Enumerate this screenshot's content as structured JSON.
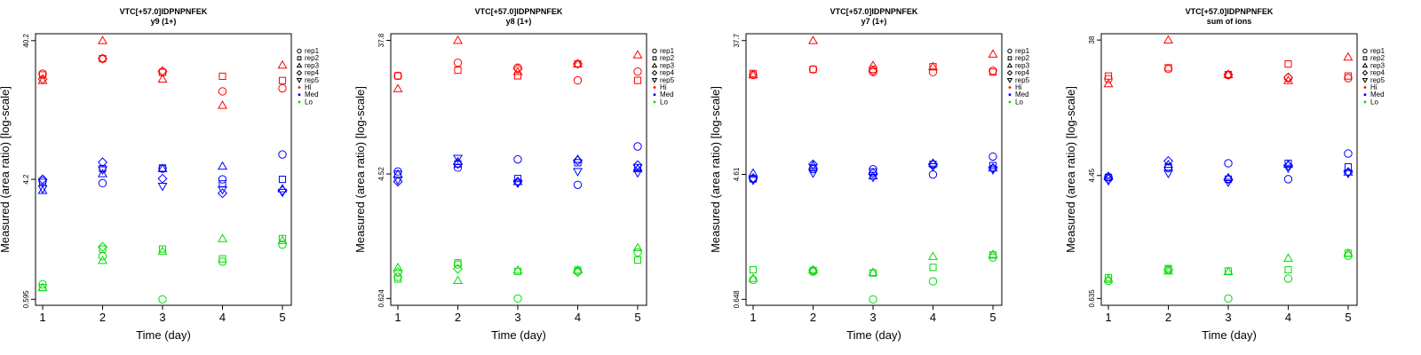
{
  "chart_data": [
    {
      "type": "scatter",
      "title": "VTC[+57.0]IDPNPNFEK",
      "subtitle": "y9 (1+)",
      "xlabel": "Time (day)",
      "ylabel": "Measured (area ratio) [log-scale]",
      "log_y": true,
      "x_ticks": [
        "1",
        "2",
        "3",
        "4",
        "5"
      ],
      "y_ticks": [
        {
          "label": "0.595",
          "value": 0.595
        },
        {
          "label": "4.2",
          "value": 4.2
        },
        {
          "label": "40.2",
          "value": 40.2
        }
      ],
      "ylim": [
        0.54,
        45.0
      ],
      "legend": [
        {
          "label": "rep1",
          "symbol": "circle"
        },
        {
          "label": "rep2",
          "symbol": "square"
        },
        {
          "label": "rep3",
          "symbol": "triangle-up"
        },
        {
          "label": "rep4",
          "symbol": "diamond"
        },
        {
          "label": "rep5",
          "symbol": "triangle-down"
        },
        {
          "label": "Hi",
          "color": "#ff0000"
        },
        {
          "label": "Med",
          "color": "#0000ff"
        },
        {
          "label": "Lo",
          "color": "#00dd00"
        }
      ],
      "legend_position": "top-right",
      "series": [
        {
          "level": "Hi",
          "color": "#ff0000",
          "points": {
            "rep1": [
              23.5,
              30.0,
              24.0,
              17.6,
              18.5
            ],
            "rep2": [
              23.0,
              30.0,
              24.0,
              22.5,
              21.0
            ],
            "rep3": [
              21.0,
              40.2,
              21.5,
              14.0,
              27.0
            ],
            "rep4": [
              21.5,
              30.0,
              24.5,
              null,
              null
            ],
            "rep5": [
              null,
              null,
              null,
              null,
              null
            ]
          }
        },
        {
          "level": "Med",
          "color": "#0000ff",
          "points": {
            "rep1": [
              4.1,
              3.95,
              5.0,
              4.2,
              6.3
            ],
            "rep2": [
              4.0,
              5.0,
              5.05,
              3.9,
              4.2
            ],
            "rep3": [
              3.5,
              4.6,
              5.0,
              5.2,
              3.6
            ],
            "rep4": [
              4.2,
              5.55,
              4.25,
              3.35,
              3.5
            ],
            "rep5": [
              3.6,
              4.9,
              3.75,
              3.55,
              3.4
            ]
          }
        },
        {
          "level": "Lo",
          "color": "#00dd00",
          "points": {
            "rep1": [
              0.76,
              1.2,
              0.595,
              1.1,
              1.45
            ],
            "rep2": [
              0.72,
              1.35,
              1.35,
              1.15,
              1.6
            ],
            "rep3": [
              0.72,
              1.12,
              1.3,
              1.6,
              1.55
            ],
            "rep4": [
              null,
              1.4,
              null,
              null,
              null
            ],
            "rep5": [
              null,
              null,
              null,
              null,
              null
            ]
          }
        }
      ]
    },
    {
      "type": "scatter",
      "title": "VTC[+57.0]IDPNPNFEK",
      "subtitle": "y8 (1+)",
      "xlabel": "Time (day)",
      "ylabel": "Measured (area ratio) [log-scale]",
      "log_y": true,
      "x_ticks": [
        "1",
        "2",
        "3",
        "4",
        "5"
      ],
      "y_ticks": [
        {
          "label": "0.624",
          "value": 0.624
        },
        {
          "label": "4.52",
          "value": 4.52
        },
        {
          "label": "37.8",
          "value": 37.8
        }
      ],
      "ylim": [
        0.56,
        42.0
      ],
      "legend": [
        {
          "label": "rep1",
          "symbol": "circle"
        },
        {
          "label": "rep2",
          "symbol": "square"
        },
        {
          "label": "rep3",
          "symbol": "triangle-up"
        },
        {
          "label": "rep4",
          "symbol": "diamond"
        },
        {
          "label": "rep5",
          "symbol": "triangle-down"
        },
        {
          "label": "Hi",
          "color": "#ff0000"
        },
        {
          "label": "Med",
          "color": "#0000ff"
        },
        {
          "label": "Lo",
          "color": "#00dd00"
        }
      ],
      "legend_position": "top-right",
      "series": [
        {
          "level": "Hi",
          "color": "#ff0000",
          "points": {
            "rep1": [
              21.5,
              26.5,
              24.5,
              20.0,
              23.0
            ],
            "rep2": [
              21.5,
              23.5,
              21.5,
              26.0,
              20.0
            ],
            "rep3": [
              17.5,
              37.8,
              23.0,
              26.0,
              30.0
            ],
            "rep4": [
              null,
              null,
              24.0,
              26.0,
              null
            ],
            "rep5": [
              null,
              null,
              null,
              null,
              null
            ]
          }
        },
        {
          "level": "Med",
          "color": "#0000ff",
          "points": {
            "rep1": [
              4.7,
              5.0,
              5.7,
              3.8,
              7.0
            ],
            "rep2": [
              4.5,
              5.3,
              4.2,
              5.4,
              5.0
            ],
            "rep3": [
              4.5,
              5.5,
              4.0,
              5.7,
              4.9
            ],
            "rep4": [
              4.0,
              5.3,
              4.0,
              5.6,
              5.2
            ],
            "rep5": [
              4.1,
              5.8,
              3.9,
              4.7,
              4.6
            ]
          }
        },
        {
          "level": "Lo",
          "color": "#00dd00",
          "points": {
            "rep1": [
              0.88,
              1.07,
              0.624,
              0.96,
              1.3
            ],
            "rep2": [
              0.85,
              1.1,
              0.96,
              0.98,
              1.15
            ],
            "rep3": [
              1.02,
              0.83,
              0.98,
              0.98,
              1.4
            ],
            "rep4": [
              0.95,
              1.0,
              null,
              0.95,
              null
            ],
            "rep5": [
              null,
              null,
              null,
              null,
              null
            ]
          }
        }
      ]
    },
    {
      "type": "scatter",
      "title": "VTC[+57.0]IDPNPNFEK",
      "subtitle": "y7 (1+)",
      "xlabel": "Time (day)",
      "ylabel": "Measured (area ratio) [log-scale]",
      "log_y": true,
      "x_ticks": [
        "1",
        "2",
        "3",
        "4",
        "5"
      ],
      "y_ticks": [
        {
          "label": "0.648",
          "value": 0.648
        },
        {
          "label": "4.61",
          "value": 4.61
        },
        {
          "label": "37.7",
          "value": 37.7
        }
      ],
      "ylim": [
        0.59,
        42.0
      ],
      "legend": [
        {
          "label": "rep1",
          "symbol": "circle"
        },
        {
          "label": "rep2",
          "symbol": "square"
        },
        {
          "label": "rep3",
          "symbol": "triangle-up"
        },
        {
          "label": "rep4",
          "symbol": "diamond"
        },
        {
          "label": "rep5",
          "symbol": "triangle-down"
        },
        {
          "label": "Hi",
          "color": "#ff0000"
        },
        {
          "label": "Med",
          "color": "#0000ff"
        },
        {
          "label": "Lo",
          "color": "#00dd00"
        }
      ],
      "legend_position": "top-right",
      "series": [
        {
          "level": "Hi",
          "color": "#ff0000",
          "points": {
            "rep1": [
              22.0,
              24.0,
              23.0,
              23.0,
              23.5
            ],
            "rep2": [
              22.5,
              24.0,
              24.0,
              25.0,
              23.0
            ],
            "rep3": [
              22.0,
              37.7,
              25.5,
              25.0,
              30.5
            ],
            "rep4": [
              null,
              null,
              23.5,
              null,
              null
            ],
            "rep5": [
              null,
              null,
              null,
              null,
              null
            ]
          }
        },
        {
          "level": "Med",
          "color": "#0000ff",
          "points": {
            "rep1": [
              4.3,
              5.0,
              5.0,
              4.6,
              6.1
            ],
            "rep2": [
              4.3,
              5.1,
              4.8,
              5.4,
              5.3
            ],
            "rep3": [
              4.7,
              5.3,
              4.5,
              5.5,
              5.1
            ],
            "rep4": [
              4.35,
              5.4,
              4.7,
              5.4,
              5.1
            ],
            "rep5": [
              4.2,
              4.7,
              4.4,
              5.2,
              4.95
            ]
          }
        },
        {
          "level": "Lo",
          "color": "#00dd00",
          "points": {
            "rep1": [
              0.88,
              1.0,
              0.648,
              0.86,
              1.25
            ],
            "rep2": [
              1.03,
              1.02,
              0.98,
              1.07,
              1.3
            ],
            "rep3": [
              0.9,
              1.03,
              0.99,
              1.27,
              1.31
            ],
            "rep4": [
              null,
              1.02,
              null,
              null,
              null
            ],
            "rep5": [
              null,
              null,
              null,
              null,
              null
            ]
          }
        }
      ]
    },
    {
      "type": "scatter",
      "title": "VTC[+57.0]IDPNPNFEK",
      "subtitle": "sum of ions",
      "xlabel": "Time (day)",
      "ylabel": "Measured (area ratio) [log-scale]",
      "log_y": true,
      "x_ticks": [
        "1",
        "2",
        "3",
        "4",
        "5"
      ],
      "y_ticks": [
        {
          "label": "0.635",
          "value": 0.635
        },
        {
          "label": "4.45",
          "value": 4.45
        },
        {
          "label": "38",
          "value": 38
        }
      ],
      "ylim": [
        0.57,
        42.0
      ],
      "legend": [
        {
          "label": "rep1",
          "symbol": "circle"
        },
        {
          "label": "rep2",
          "symbol": "square"
        },
        {
          "label": "rep3",
          "symbol": "triangle-up"
        },
        {
          "label": "rep4",
          "symbol": "diamond"
        },
        {
          "label": "rep5",
          "symbol": "triangle-down"
        },
        {
          "label": "Hi",
          "color": "#ff0000"
        },
        {
          "label": "Med",
          "color": "#0000ff"
        },
        {
          "label": "Lo",
          "color": "#00dd00"
        }
      ],
      "legend_position": "top-right",
      "series": [
        {
          "level": "Hi",
          "color": "#ff0000",
          "points": {
            "rep1": [
              20.5,
              24.0,
              21.8,
              20.8,
              20.8
            ],
            "rep2": [
              21.5,
              24.5,
              22.0,
              26.0,
              21.5
            ],
            "rep3": [
              19.0,
              38.0,
              22.0,
              20.0,
              29.0
            ],
            "rep4": [
              null,
              null,
              22.0,
              21.0,
              null
            ],
            "rep5": [
              null,
              null,
              null,
              null,
              null
            ]
          }
        },
        {
          "level": "Med",
          "color": "#0000ff",
          "points": {
            "rep1": [
              4.35,
              5.0,
              5.4,
              4.2,
              6.3
            ],
            "rep2": [
              4.3,
              5.1,
              4.2,
              5.4,
              5.1
            ],
            "rep3": [
              4.4,
              5.3,
              4.3,
              5.3,
              4.7
            ],
            "rep4": [
              4.2,
              5.6,
              4.2,
              5.2,
              4.7
            ],
            "rep5": [
              4.1,
              4.6,
              4.0,
              5.0,
              4.6
            ]
          }
        },
        {
          "level": "Lo",
          "color": "#00dd00",
          "points": {
            "rep1": [
              0.84,
              1.0,
              0.635,
              0.87,
              1.25
            ],
            "rep2": [
              0.88,
              1.02,
              0.98,
              1.0,
              1.3
            ],
            "rep3": [
              0.86,
              0.98,
              0.97,
              1.2,
              1.3
            ],
            "rep4": [
              null,
              1.0,
              null,
              null,
              null
            ],
            "rep5": [
              null,
              null,
              null,
              null,
              null
            ]
          }
        }
      ]
    }
  ]
}
